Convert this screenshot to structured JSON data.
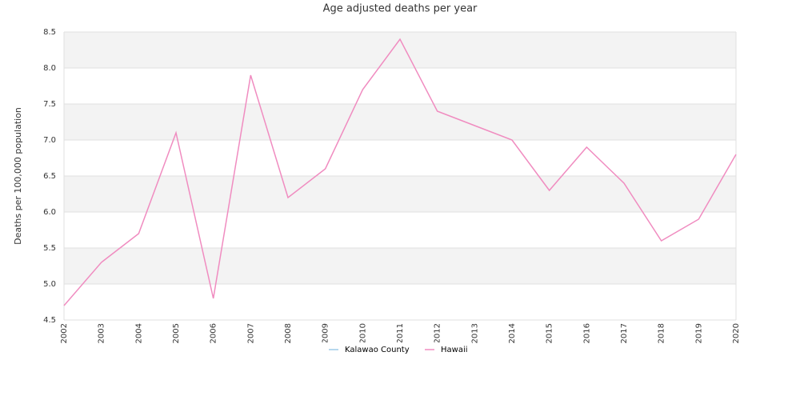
{
  "chart_data": {
    "type": "line",
    "title": "Age adjusted deaths per year",
    "y_label": "Deaths per 100,000 population",
    "categories": [
      "2002",
      "2003",
      "2004",
      "2005",
      "2006",
      "2007",
      "2008",
      "2009",
      "2010",
      "2011",
      "2012",
      "2013",
      "2014",
      "2015",
      "2016",
      "2017",
      "2018",
      "2019",
      "2020"
    ],
    "series": [
      {
        "name": "Kalawao County",
        "color": "#9ecae9",
        "values": [
          null,
          null,
          null,
          null,
          null,
          null,
          null,
          null,
          null,
          null,
          null,
          null,
          null,
          null,
          null,
          null,
          null,
          null,
          null
        ]
      },
      {
        "name": "Hawaii",
        "color": "#f08cc0",
        "values": [
          4.7,
          5.3,
          5.7,
          7.1,
          4.8,
          7.9,
          6.2,
          6.6,
          7.7,
          8.4,
          7.4,
          7.2,
          7.0,
          6.3,
          6.9,
          6.4,
          5.6,
          5.9,
          6.8
        ]
      }
    ],
    "ylim": [
      4.5,
      8.5
    ],
    "yticks": [
      4.5,
      {
        "value": 5,
        "label": "5.0"
      },
      5.5,
      {
        "value": 6,
        "label": "6.0"
      },
      6.5,
      {
        "value": 7,
        "label": "7.0"
      },
      7.5,
      {
        "value": 8,
        "label": "8.0"
      },
      8.5
    ],
    "grid": true,
    "legend": "bottom"
  }
}
